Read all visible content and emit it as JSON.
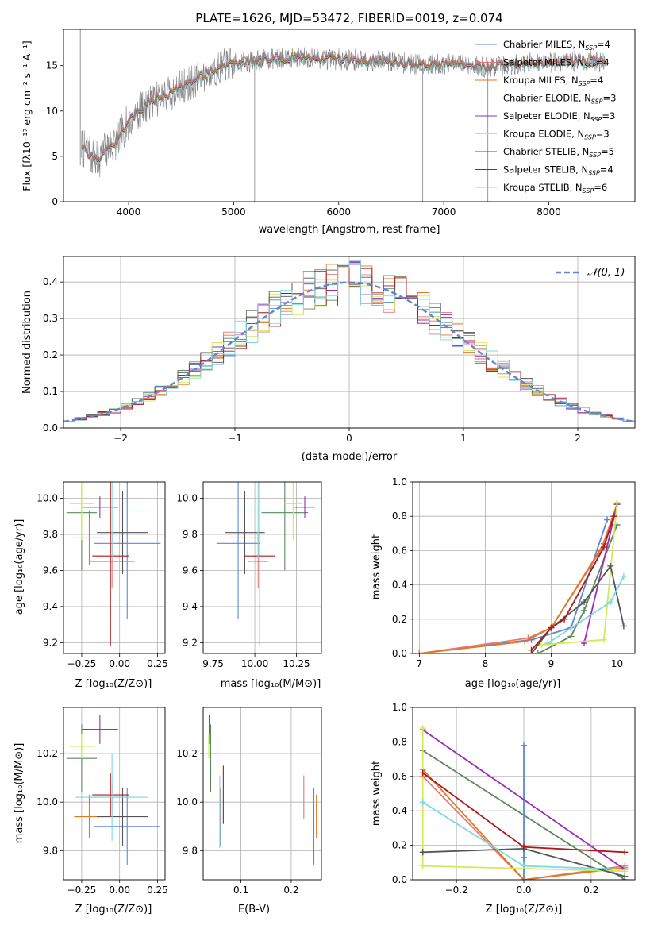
{
  "chart_data": [
    {
      "id": "spectrum",
      "type": "line",
      "title": "PLATE=1626, MJD=53472, FIBERID=0019, z=0.074",
      "xlabel": "wavelength [Angstrom, rest frame]",
      "ylabel": "Flux [fλ10⁻¹⁷ erg cm⁻² s⁻¹ A⁻¹]",
      "xlim": [
        3380,
        8820
      ],
      "ylim": [
        0,
        19
      ],
      "xticks": [
        4000,
        5000,
        6000,
        7000,
        8000
      ],
      "yticks": [
        0,
        5,
        10,
        15
      ],
      "grid": false,
      "legend_position": "top-right",
      "legend": [
        {
          "label": "Chabrier MILES, N",
          "sub": "SSP",
          "suffix": "=4",
          "color": "#5B87D6"
        },
        {
          "label": "Salpeter MILES, N",
          "sub": "SSP",
          "suffix": "=4",
          "color": "#E87878"
        },
        {
          "label": "Kroupa MILES, N",
          "sub": "SSP",
          "suffix": "=4",
          "color": "#E07A1F"
        },
        {
          "label": "Chabrier ELODIE, N",
          "sub": "SSP",
          "suffix": "=3",
          "color": "#5C8A5C"
        },
        {
          "label": "Salpeter ELODIE, N",
          "sub": "SSP",
          "suffix": "=3",
          "color": "#9B2CB8"
        },
        {
          "label": "Kroupa ELODIE, N",
          "sub": "SSP",
          "suffix": "=3",
          "color": "#D4E85A"
        },
        {
          "label": "Chabrier STELIB, N",
          "sub": "SSP",
          "suffix": "=5",
          "color": "#555555"
        },
        {
          "label": "Salpeter STELIB, N",
          "sub": "SSP",
          "suffix": "=4",
          "color": "#B01818"
        },
        {
          "label": "Kroupa STELIB, N",
          "sub": "SSP",
          "suffix": "=6",
          "color": "#7ED8E0"
        }
      ],
      "data_color": "#808080",
      "continuum": [
        [
          3550,
          6
        ],
        [
          3700,
          4.5
        ],
        [
          3800,
          6
        ],
        [
          3900,
          6.5
        ],
        [
          3950,
          8
        ],
        [
          4050,
          9.5
        ],
        [
          4200,
          11
        ],
        [
          4400,
          12
        ],
        [
          4600,
          13.2
        ],
        [
          4800,
          14.5
        ],
        [
          5000,
          15.2
        ],
        [
          5200,
          15.5
        ],
        [
          5400,
          15.8
        ],
        [
          5600,
          15.9
        ],
        [
          5800,
          15.8
        ],
        [
          6000,
          15.7
        ],
        [
          6200,
          15.6
        ],
        [
          6400,
          15.5
        ],
        [
          6600,
          15.3
        ],
        [
          6800,
          15.1
        ],
        [
          7000,
          15.2
        ],
        [
          7200,
          15.1
        ],
        [
          7400,
          14.8
        ],
        [
          7600,
          15.0
        ],
        [
          7800,
          15.3
        ],
        [
          8000,
          15.4
        ],
        [
          8200,
          15.5
        ],
        [
          8400,
          15.5
        ],
        [
          8550,
          15.4
        ]
      ],
      "dips": [
        [
          5200,
          0
        ],
        [
          6800,
          0
        ],
        [
          7420,
          0
        ]
      ]
    },
    {
      "id": "residuals",
      "type": "line",
      "xlabel": "(data-model)/error",
      "ylabel": "Normed distribution",
      "xlim": [
        -2.5,
        2.5
      ],
      "ylim": [
        0,
        0.47
      ],
      "xticks": [
        -2,
        -1,
        0,
        1,
        2
      ],
      "yticks": [
        0.0,
        0.1,
        0.2,
        0.3,
        0.4
      ],
      "grid": true,
      "legend_position": "top-right",
      "legend": [
        {
          "label": "𝒩(0, 1)",
          "color": "#5B87D6",
          "style": "dashed"
        }
      ],
      "normal_mean": 0,
      "normal_std": 1,
      "histogram_bin_width": 0.1
    },
    {
      "id": "age-vs-z",
      "type": "scatter",
      "xlabel": "Z [log₁₀(Z/Z⊙)]",
      "ylabel": "age  [log₁₀(age/yr)]",
      "xlim": [
        -0.37,
        0.3
      ],
      "ylim": [
        9.14,
        10.09
      ],
      "xticks": [
        -0.25,
        0.0,
        0.25
      ],
      "yticks": [
        9.2,
        9.4,
        9.6,
        9.8,
        10.0
      ],
      "grid": true,
      "points": [
        {
          "x": 0.05,
          "y": 9.75,
          "xerr": 0.22,
          "yerr": 0.42,
          "color": "#5B87D6"
        },
        {
          "x": -0.05,
          "y": 9.65,
          "xerr": 0.15,
          "yerr": 0.15,
          "color": "#E87878"
        },
        {
          "x": -0.2,
          "y": 9.78,
          "xerr": 0.1,
          "yerr": 0.15,
          "color": "#E07A1F"
        },
        {
          "x": -0.25,
          "y": 9.92,
          "xerr": 0.1,
          "yerr": 0.32,
          "color": "#5C8A5C"
        },
        {
          "x": -0.13,
          "y": 9.95,
          "xerr": 0.12,
          "yerr": 0.06,
          "color": "#9B2CB8"
        },
        {
          "x": -0.25,
          "y": 9.97,
          "xerr": 0.08,
          "yerr": 0.2,
          "color": "#D4E85A"
        },
        {
          "x": 0.02,
          "y": 9.81,
          "xerr": 0.17,
          "yerr": 0.23,
          "color": "#555555"
        },
        {
          "x": -0.06,
          "y": 9.68,
          "xerr": 0.12,
          "yerr": 0.5,
          "color": "#B01818"
        },
        {
          "x": -0.05,
          "y": 9.93,
          "xerr": 0.24,
          "yerr": 0.26,
          "color": "#7ED8E0"
        }
      ]
    },
    {
      "id": "age-vs-mass",
      "type": "scatter",
      "xlabel": "mass [log₁₀(M/M⊙)]",
      "xlim": [
        9.69,
        10.4
      ],
      "ylim": [
        9.14,
        10.09
      ],
      "xticks": [
        9.75,
        10.0,
        10.25
      ],
      "yticks": [
        9.2,
        9.4,
        9.6,
        9.8,
        10.0
      ],
      "grid": true,
      "points": [
        {
          "x": 9.9,
          "y": 9.75,
          "xerr": 0.13,
          "yerr": 0.42,
          "color": "#5B87D6"
        },
        {
          "x": 10.02,
          "y": 9.65,
          "xerr": 0.06,
          "yerr": 0.15,
          "color": "#E87878"
        },
        {
          "x": 9.94,
          "y": 9.78,
          "xerr": 0.09,
          "yerr": 0.15,
          "color": "#E07A1F"
        },
        {
          "x": 10.18,
          "y": 9.92,
          "xerr": 0.14,
          "yerr": 0.32,
          "color": "#5C8A5C"
        },
        {
          "x": 10.3,
          "y": 9.95,
          "xerr": 0.06,
          "yerr": 0.06,
          "color": "#9B2CB8"
        },
        {
          "x": 10.23,
          "y": 9.97,
          "xerr": 0.05,
          "yerr": 0.2,
          "color": "#D4E85A"
        },
        {
          "x": 9.94,
          "y": 9.81,
          "xerr": 0.12,
          "yerr": 0.23,
          "color": "#555555"
        },
        {
          "x": 10.03,
          "y": 9.68,
          "xerr": 0.09,
          "yerr": 0.5,
          "color": "#B01818"
        },
        {
          "x": 10.02,
          "y": 9.93,
          "xerr": 0.18,
          "yerr": 0.26,
          "color": "#7ED8E0"
        }
      ]
    },
    {
      "id": "weight-vs-age",
      "type": "line",
      "xlabel": "age  [log₁₀(age/yr)]",
      "ylabel": "mass weight",
      "xlim": [
        6.9,
        10.27
      ],
      "ylim": [
        0,
        1
      ],
      "xticks": [
        7,
        8,
        9,
        10
      ],
      "yticks": [
        0.0,
        0.2,
        0.4,
        0.6,
        0.8,
        1.0
      ],
      "grid": true,
      "series": [
        {
          "color": "#5B87D6",
          "x": [
            7.0,
            8.7,
            9.3,
            9.85
          ],
          "y": [
            0.0,
            0.08,
            0.15,
            0.78
          ]
        },
        {
          "color": "#E87878",
          "x": [
            7.0,
            8.65,
            9.0,
            9.75,
            10.0
          ],
          "y": [
            0.0,
            0.09,
            0.15,
            0.6,
            0.87
          ]
        },
        {
          "color": "#E07A1F",
          "x": [
            7.0,
            8.6,
            9.0,
            9.8,
            10.0
          ],
          "y": [
            0.0,
            0.07,
            0.15,
            0.64,
            0.87
          ]
        },
        {
          "color": "#5C8A5C",
          "x": [
            8.8,
            9.3,
            9.5,
            10.0
          ],
          "y": [
            0.0,
            0.1,
            0.25,
            0.75
          ]
        },
        {
          "color": "#9B2CB8",
          "x": [
            9.5,
            10.0
          ],
          "y": [
            0.06,
            0.87
          ]
        },
        {
          "color": "#D4E85A",
          "x": [
            8.85,
            9.8,
            10.0
          ],
          "y": [
            0.05,
            0.08,
            0.88
          ]
        },
        {
          "color": "#555555",
          "x": [
            8.7,
            9.0,
            9.5,
            9.9,
            10.1
          ],
          "y": [
            0.0,
            0.15,
            0.3,
            0.51,
            0.16
          ]
        },
        {
          "color": "#B01818",
          "x": [
            8.7,
            9.0,
            9.2,
            9.8,
            9.95
          ],
          "y": [
            0.02,
            0.15,
            0.2,
            0.62,
            0.8
          ]
        },
        {
          "color": "#7ED8E0",
          "x": [
            8.95,
            9.9,
            10.1
          ],
          "y": [
            0.06,
            0.3,
            0.45
          ]
        }
      ]
    },
    {
      "id": "mass-vs-z",
      "type": "scatter",
      "xlabel": "Z [log₁₀(Z/Z⊙)]",
      "ylabel": "mass [log₁₀(M/M⊙)]",
      "xlim": [
        -0.37,
        0.3
      ],
      "ylim": [
        9.68,
        10.39
      ],
      "xticks": [
        -0.25,
        0.0,
        0.25
      ],
      "yticks": [
        9.8,
        10.0,
        10.2
      ],
      "grid": true,
      "points": [
        {
          "x": 0.05,
          "y": 9.9,
          "xerr": 0.22,
          "yerr": 0.16,
          "color": "#5B87D6"
        },
        {
          "x": -0.05,
          "y": 10.02,
          "xerr": 0.15,
          "yerr": 0.06,
          "color": "#E87878"
        },
        {
          "x": -0.2,
          "y": 9.94,
          "xerr": 0.1,
          "yerr": 0.09,
          "color": "#E07A1F"
        },
        {
          "x": -0.25,
          "y": 10.18,
          "xerr": 0.1,
          "yerr": 0.14,
          "color": "#5C8A5C"
        },
        {
          "x": -0.13,
          "y": 10.3,
          "xerr": 0.12,
          "yerr": 0.06,
          "color": "#9B2CB8"
        },
        {
          "x": -0.25,
          "y": 10.23,
          "xerr": 0.08,
          "yerr": 0.05,
          "color": "#D4E85A"
        },
        {
          "x": 0.02,
          "y": 9.94,
          "xerr": 0.17,
          "yerr": 0.12,
          "color": "#555555"
        },
        {
          "x": -0.06,
          "y": 10.03,
          "xerr": 0.12,
          "yerr": 0.09,
          "color": "#B01818"
        },
        {
          "x": -0.05,
          "y": 10.02,
          "xerr": 0.24,
          "yerr": 0.18,
          "color": "#7ED8E0"
        }
      ]
    },
    {
      "id": "mass-vs-ebv",
      "type": "scatter",
      "xlabel": "E(B-V)",
      "xlim": [
        0.025,
        0.26
      ],
      "ylim": [
        9.68,
        10.39
      ],
      "xticks": [
        0.1,
        0.2
      ],
      "yticks": [
        9.8,
        10.0,
        10.2
      ],
      "grid": true,
      "points": [
        {
          "x": 0.245,
          "y": 9.9,
          "xerr": 0,
          "yerr": 0.16,
          "color": "#5B87D6"
        },
        {
          "x": 0.225,
          "y": 10.02,
          "xerr": 0,
          "yerr": 0.09,
          "color": "#E87878"
        },
        {
          "x": 0.25,
          "y": 9.94,
          "xerr": 0,
          "yerr": 0.09,
          "color": "#E07A1F"
        },
        {
          "x": 0.04,
          "y": 10.18,
          "xerr": 0,
          "yerr": 0.14,
          "color": "#5C8A5C"
        },
        {
          "x": 0.037,
          "y": 10.3,
          "xerr": 0,
          "yerr": 0.06,
          "color": "#9B2CB8"
        },
        {
          "x": 0.036,
          "y": 10.23,
          "xerr": 0,
          "yerr": 0.05,
          "color": "#D4E85A"
        },
        {
          "x": 0.06,
          "y": 9.94,
          "xerr": 0,
          "yerr": 0.12,
          "color": "#555555"
        },
        {
          "x": 0.065,
          "y": 10.03,
          "xerr": 0,
          "yerr": 0.12,
          "color": "#B01818"
        },
        {
          "x": 0.058,
          "y": 9.96,
          "xerr": 0,
          "yerr": 0.15,
          "color": "#7ED8E0"
        }
      ]
    },
    {
      "id": "weight-vs-z",
      "type": "line",
      "xlabel": "Z [log₁₀(Z/Z⊙)]",
      "ylabel": "mass weight",
      "xlim": [
        -0.33,
        0.33
      ],
      "ylim": [
        0,
        1
      ],
      "xticks": [
        -0.2,
        0.0,
        0.2
      ],
      "yticks": [
        0.0,
        0.2,
        0.4,
        0.6,
        0.8,
        1.0
      ],
      "grid": true,
      "series": [
        {
          "color": "#5B87D6",
          "x": [
            0.0,
            0.0,
            0.0
          ],
          "y": [
            0.78,
            0.13,
            0.0
          ]
        },
        {
          "color": "#E87878",
          "x": [
            -0.3,
            0.0,
            0.3
          ],
          "y": [
            0.6,
            0.0,
            0.08
          ]
        },
        {
          "color": "#E07A1F",
          "x": [
            -0.3,
            0.0,
            0.3
          ],
          "y": [
            0.64,
            0.0,
            0.07
          ]
        },
        {
          "color": "#5C8A5C",
          "x": [
            -0.3,
            0.3
          ],
          "y": [
            0.75,
            0.0
          ]
        },
        {
          "color": "#9B2CB8",
          "x": [
            -0.3,
            0.3
          ],
          "y": [
            0.87,
            0.06
          ]
        },
        {
          "color": "#D4E85A",
          "x": [
            -0.3,
            -0.3,
            0.3
          ],
          "y": [
            0.88,
            0.08,
            0.05
          ]
        },
        {
          "color": "#555555",
          "x": [
            -0.3,
            0.0,
            0.3
          ],
          "y": [
            0.16,
            0.18,
            0.02
          ]
        },
        {
          "color": "#B01818",
          "x": [
            -0.3,
            0.0,
            0.3
          ],
          "y": [
            0.62,
            0.19,
            0.16
          ]
        },
        {
          "color": "#7ED8E0",
          "x": [
            -0.3,
            0.0,
            0.3
          ],
          "y": [
            0.45,
            0.08,
            0.06
          ]
        }
      ]
    }
  ]
}
